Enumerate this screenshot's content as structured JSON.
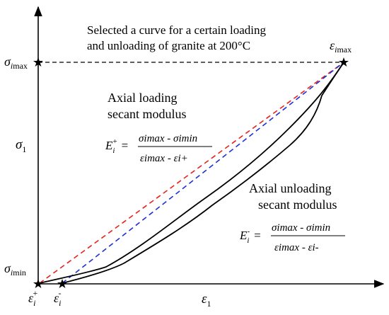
{
  "caption": {
    "line1": "Selected a curve for a certain loading",
    "line2": "and unloading of granite at 200°C"
  },
  "loading_label": {
    "line1": "Axial loading",
    "line2": "secant modulus"
  },
  "unloading_label": {
    "line1": "Axial unloading",
    "line2": "secant modulus"
  },
  "axes": {
    "x_symbol": "ε",
    "x_sub": "1",
    "y_symbol": "σ",
    "y_sub": "1"
  },
  "points": {
    "sigma": "σ",
    "eps": "ε",
    "i": "i",
    "max": "max",
    "min": "min",
    "plus": "+",
    "minus": "-"
  },
  "formula_loading": {
    "E": "E",
    "sub_i": "i",
    "sup": "+",
    "eq": "=",
    "num": "σimax - σimin",
    "den": "εimax - εi+"
  },
  "formula_unloading": {
    "E": "E",
    "sub_i": "i",
    "sup": "-",
    "eq": "=",
    "num": "σimax - σimin",
    "den": "εimax - εi-"
  },
  "colors": {
    "loading_secant": "#e8211d",
    "unloading_secant": "#1f2fd6",
    "curve": "#000000"
  }
}
